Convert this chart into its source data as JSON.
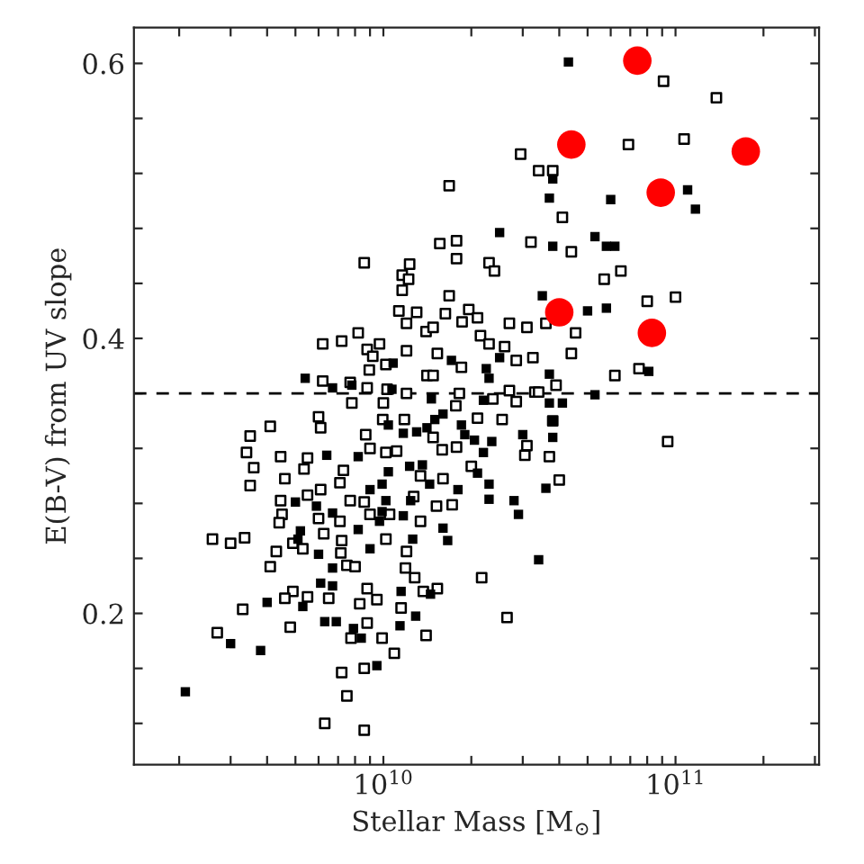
{
  "chart_data": {
    "type": "scatter",
    "xlabel": "Stellar Mass [M$_{⊙}$]",
    "ylabel": "E(B-V) from UV slope",
    "log": "x",
    "grid": false,
    "legend": false,
    "xlim": [
      1400000000.0,
      310000000000.0
    ],
    "ylim": [
      0.09,
      0.626
    ],
    "xticks": [
      {
        "value": 2000000000.0,
        "label": null
      },
      {
        "value": 3000000000.0,
        "label": null
      },
      {
        "value": 4000000000.0,
        "label": null
      },
      {
        "value": 5000000000.0,
        "label": null
      },
      {
        "value": 6000000000.0,
        "label": null
      },
      {
        "value": 7000000000.0,
        "label": null
      },
      {
        "value": 8000000000.0,
        "label": null
      },
      {
        "value": 9000000000.0,
        "label": null
      },
      {
        "value": 10000000000.0,
        "label": "10$^{10}$"
      },
      {
        "value": 20000000000.0,
        "label": null
      },
      {
        "value": 30000000000.0,
        "label": null
      },
      {
        "value": 40000000000.0,
        "label": null
      },
      {
        "value": 50000000000.0,
        "label": null
      },
      {
        "value": 60000000000.0,
        "label": null
      },
      {
        "value": 70000000000.0,
        "label": null
      },
      {
        "value": 80000000000.0,
        "label": null
      },
      {
        "value": 90000000000.0,
        "label": null
      },
      {
        "value": 100000000000.0,
        "label": "10$^{11}$"
      },
      {
        "value": 200000000000.0,
        "label": null
      },
      {
        "value": 300000000000.0,
        "label": null
      }
    ],
    "yticks": [
      {
        "value": 0.12,
        "label": null
      },
      {
        "value": 0.16,
        "label": null
      },
      {
        "value": 0.2,
        "label": "0.2"
      },
      {
        "value": 0.24,
        "label": null
      },
      {
        "value": 0.28,
        "label": null
      },
      {
        "value": 0.32,
        "label": null
      },
      {
        "value": 0.36,
        "label": null
      },
      {
        "value": 0.4,
        "label": "0.4"
      },
      {
        "value": 0.44,
        "label": null
      },
      {
        "value": 0.48,
        "label": null
      },
      {
        "value": 0.52,
        "label": null
      },
      {
        "value": 0.56,
        "label": null
      },
      {
        "value": 0.6,
        "label": "0.6"
      }
    ],
    "ref_lines": [
      {
        "axis": "y",
        "value": 0.36,
        "color": "#000000",
        "line_style": "dashed"
      }
    ],
    "series": [
      {
        "marker": "square",
        "color": "#ffffff",
        "x": [
          91000000000.0,
          138000000000.0,
          107000000000.0,
          69000000000.0,
          29500000000.0,
          34000000000.0,
          38000000000.0,
          16800000000.0,
          41000000000.0,
          44000000000.0,
          32000000000.0,
          15600000000.0,
          17800000000.0,
          17800000000.0,
          8600000000.0,
          12300000000.0,
          23000000000.0,
          24000000000.0,
          11600000000.0,
          12200000000.0,
          11600000000.0,
          57000000000.0,
          65000000000.0,
          80000000000.0,
          100000000000.0,
          16800000000.0,
          11300000000.0,
          13000000000.0,
          16300000000.0,
          19600000000.0,
          21000000000.0,
          12000000000.0,
          14000000000.0,
          14800000000.0,
          18600000000.0,
          27000000000.0,
          31000000000.0,
          36000000000.0,
          45500000000.0,
          8200000000.0,
          7200000000.0,
          6200000000.0,
          9700000000.0,
          8800000000.0,
          12000000000.0,
          15300000000.0,
          21500000000.0,
          23000000000.0,
          26000000000.0,
          44000000000.0,
          32500000000.0,
          28500000000.0,
          9200000000.0,
          10200000000.0,
          8950000000.0,
          18500000000.0,
          14100000000.0,
          14800000000.0,
          62000000000.0,
          75000000000.0,
          39000000000.0,
          27000000000.0,
          33000000000.0,
          34000000000.0,
          6200000000.0,
          7700000000.0,
          8800000000.0,
          10300000000.0,
          12000000000.0,
          7800000000.0,
          10000000000.0,
          18200000000.0,
          17700000000.0,
          23700000000.0,
          28500000000.0,
          6000000000.0,
          6100000000.0,
          4100000000.0,
          3500000000.0,
          9950000000.0,
          11800000000.0,
          21000000000.0,
          25500000000.0,
          38000000000.0,
          8700000000.0,
          14800000000.0,
          15900000000.0,
          17800000000.0,
          3400000000.0,
          3600000000.0,
          3500000000.0,
          4450000000.0,
          5500000000.0,
          9000000000.0,
          10200000000.0,
          11100000000.0,
          20000000000.0,
          30500000000.0,
          31000000000.0,
          37000000000.0,
          5350000000.0,
          4600000000.0,
          7300000000.0,
          7100000000.0,
          6100000000.0,
          13400000000.0,
          16000000000.0,
          12700000000.0,
          15200000000.0,
          17200000000.0,
          40000000000.0,
          4450000000.0,
          4500000000.0,
          5500000000.0,
          7700000000.0,
          8600000000.0,
          9000000000.0,
          10500000000.0,
          13400000000.0,
          6000000000.0,
          4400000000.0,
          7100000000.0,
          2600000000.0,
          3000000000.0,
          3350000000.0,
          4900000000.0,
          6250000000.0,
          7200000000.0,
          10200000000.0,
          4300000000.0,
          5300000000.0,
          7150000000.0,
          12000000000.0,
          4100000000.0,
          7500000000.0,
          8000000000.0,
          11900000000.0,
          21700000000.0,
          12800000000.0,
          4900000000.0,
          4600000000.0,
          5500000000.0,
          6500000000.0,
          8800000000.0,
          9500000000.0,
          8300000000.0,
          11500000000.0,
          13700000000.0,
          15300000000.0,
          3300000000.0,
          4800000000.0,
          2700000000.0,
          8800000000.0,
          7750000000.0,
          9900000000.0,
          14000000000.0,
          10900000000.0,
          26500000000.0,
          7200000000.0,
          7500000000.0,
          8600000000.0,
          6300000000.0,
          8600000000.0,
          94000000000.0
        ],
        "values": [
          0.587,
          0.575,
          0.545,
          0.541,
          0.534,
          0.522,
          0.522,
          0.511,
          0.488,
          0.463,
          0.47,
          0.469,
          0.471,
          0.458,
          0.455,
          0.454,
          0.455,
          0.449,
          0.446,
          0.443,
          0.435,
          0.443,
          0.449,
          0.427,
          0.43,
          0.431,
          0.42,
          0.419,
          0.418,
          0.421,
          0.415,
          0.411,
          0.405,
          0.408,
          0.412,
          0.411,
          0.408,
          0.411,
          0.404,
          0.404,
          0.398,
          0.396,
          0.396,
          0.392,
          0.391,
          0.389,
          0.402,
          0.396,
          0.394,
          0.389,
          0.386,
          0.384,
          0.387,
          0.381,
          0.377,
          0.379,
          0.373,
          0.373,
          0.373,
          0.378,
          0.366,
          0.362,
          0.361,
          0.361,
          0.369,
          0.368,
          0.364,
          0.363,
          0.36,
          0.353,
          0.353,
          0.36,
          0.351,
          0.356,
          0.354,
          0.343,
          0.335,
          0.336,
          0.329,
          0.341,
          0.341,
          0.342,
          0.341,
          0.34,
          0.33,
          0.328,
          0.319,
          0.321,
          0.317,
          0.306,
          0.293,
          0.314,
          0.313,
          0.32,
          0.317,
          0.318,
          0.307,
          0.315,
          0.322,
          0.314,
          0.305,
          0.298,
          0.304,
          0.295,
          0.29,
          0.3,
          0.298,
          0.285,
          0.278,
          0.279,
          0.297,
          0.282,
          0.272,
          0.286,
          0.282,
          0.281,
          0.272,
          0.272,
          0.267,
          0.269,
          0.266,
          0.267,
          0.254,
          0.251,
          0.255,
          0.251,
          0.258,
          0.253,
          0.254,
          0.245,
          0.247,
          0.244,
          0.245,
          0.234,
          0.235,
          0.234,
          0.233,
          0.226,
          0.226,
          0.216,
          0.211,
          0.212,
          0.211,
          0.218,
          0.21,
          0.207,
          0.204,
          0.216,
          0.218,
          0.203,
          0.19,
          0.186,
          0.193,
          0.182,
          0.182,
          0.184,
          0.171,
          0.197,
          0.157,
          0.14,
          0.16,
          0.12,
          0.115,
          0.325
        ]
      },
      {
        "marker": "square",
        "color": "#000000",
        "x": [
          43000000000.0,
          38000000000.0,
          37000000000.0,
          60000000000.0,
          110000000000.0,
          117000000000.0,
          25000000000.0,
          53000000000.0,
          38000000000.0,
          58000000000.0,
          62000000000.0,
          35000000000.0,
          50000000000.0,
          58000000000.0,
          37000000000.0,
          81000000000.0,
          53000000000.0,
          37000000000.0,
          41000000000.0,
          38000000000.0,
          38000000000.0,
          30000000000.0,
          36000000000.0,
          28000000000.0,
          29000000000.0,
          34000000000.0,
          5400000000.0,
          6700000000.0,
          7800000000.0,
          10800000000.0,
          10700000000.0,
          17100000000.0,
          22500000000.0,
          23000000000.0,
          25000000000.0,
          22000000000.0,
          14600000000.0,
          16000000000.0,
          15000000000.0,
          14100000000.0,
          13000000000.0,
          18500000000.0,
          19000000000.0,
          20500000000.0,
          23500000000.0,
          22000000000.0,
          10400000000.0,
          11700000000.0,
          6400000000.0,
          8200000000.0,
          10400000000.0,
          12300000000.0,
          13600000000.0,
          14400000000.0,
          9900000000.0,
          9000000000.0,
          10200000000.0,
          12400000000.0,
          18000000000.0,
          23000000000.0,
          21000000000.0,
          23000000000.0,
          5000000000.0,
          5900000000.0,
          6700000000.0,
          9700000000.0,
          9900000000.0,
          11700000000.0,
          16000000000.0,
          16600000000.0,
          12600000000.0,
          5200000000.0,
          5100000000.0,
          6000000000.0,
          8200000000.0,
          9000000000.0,
          6700000000.0,
          6100000000.0,
          6700000000.0,
          5300000000.0,
          11500000000.0,
          12900000000.0,
          14500000000.0,
          11400000000.0,
          4000000000.0,
          6300000000.0,
          6900000000.0,
          7900000000.0,
          8400000000.0,
          9500000000.0,
          3000000000.0,
          3800000000.0,
          2100000000.0
        ],
        "values": [
          0.601,
          0.516,
          0.502,
          0.501,
          0.508,
          0.494,
          0.477,
          0.474,
          0.467,
          0.467,
          0.467,
          0.431,
          0.42,
          0.422,
          0.374,
          0.376,
          0.359,
          0.353,
          0.353,
          0.34,
          0.328,
          0.33,
          0.291,
          0.282,
          0.272,
          0.239,
          0.371,
          0.364,
          0.366,
          0.382,
          0.363,
          0.384,
          0.378,
          0.371,
          0.386,
          0.355,
          0.356,
          0.345,
          0.341,
          0.335,
          0.332,
          0.337,
          0.33,
          0.326,
          0.325,
          0.317,
          0.337,
          0.331,
          0.315,
          0.314,
          0.303,
          0.307,
          0.308,
          0.294,
          0.294,
          0.29,
          0.282,
          0.282,
          0.29,
          0.294,
          0.302,
          0.283,
          0.281,
          0.278,
          0.273,
          0.267,
          0.274,
          0.271,
          0.262,
          0.253,
          0.254,
          0.26,
          0.254,
          0.243,
          0.261,
          0.247,
          0.233,
          0.222,
          0.22,
          0.205,
          0.216,
          0.198,
          0.214,
          0.191,
          0.208,
          0.194,
          0.194,
          0.189,
          0.182,
          0.162,
          0.178,
          0.173,
          0.143
        ]
      },
      {
        "marker": "circle",
        "color": "#ff0000",
        "x": [
          74000000000.0,
          44000000000.0,
          174000000000.0,
          89000000000.0,
          40000000000.0,
          83000000000.0
        ],
        "values": [
          0.602,
          0.541,
          0.536,
          0.506,
          0.419,
          0.404
        ]
      }
    ]
  }
}
